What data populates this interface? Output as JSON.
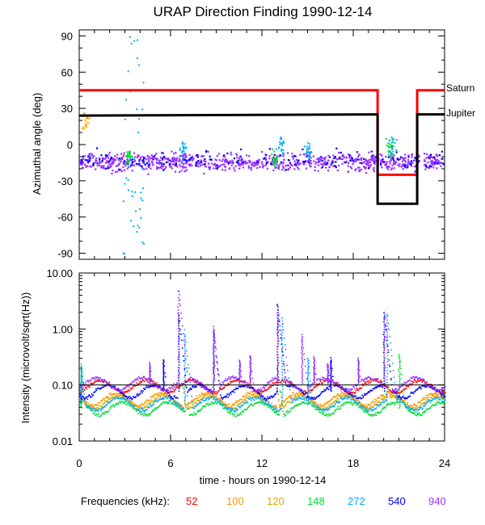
{
  "chart_data": [
    {
      "type": "scatter",
      "title": "URAP Direction Finding  1990-12-14",
      "ylabel": "Azimuthal angle (deg)",
      "xlim": [
        0,
        24
      ],
      "ylim": [
        -95,
        95
      ],
      "yticks": [
        90,
        60,
        30,
        0,
        -30,
        -60,
        -90
      ],
      "yticklabels": [
        "90",
        "60",
        "30",
        "0",
        "-30",
        "-60",
        "-90"
      ],
      "planets": [
        {
          "name": "Saturn",
          "color": "#ff0000",
          "points": [
            [
              0,
              45
            ],
            [
              19.6,
              45
            ],
            [
              19.6,
              -25
            ],
            [
              22.2,
              -25
            ],
            [
              22.2,
              45
            ],
            [
              24,
              45
            ]
          ]
        },
        {
          "name": "Jupiter",
          "color": "#000000",
          "points": [
            [
              0,
              24
            ],
            [
              19.6,
              25
            ],
            [
              19.6,
              -49
            ],
            [
              22.2,
              -49
            ],
            [
              22.2,
              25
            ],
            [
              24,
              25
            ]
          ]
        }
      ],
      "scatter_series": [
        {
          "frequency": "940",
          "color": "#9933ff",
          "description": "main cloud",
          "x_range": [
            0,
            24
          ],
          "center": -14,
          "spread": 9,
          "count": 900
        },
        {
          "frequency": "540",
          "color": "#0000ff",
          "description": "main cloud",
          "x_range": [
            0,
            24
          ],
          "center": -12,
          "spread": 9,
          "count": 180
        },
        {
          "frequency": "272",
          "color": "#00aaff",
          "description": "clusters",
          "clusters": [
            [
              6.8,
              -2
            ],
            [
              13.2,
              0
            ],
            [
              15.0,
              -5
            ],
            [
              20.5,
              0
            ]
          ]
        },
        {
          "frequency": "148",
          "color": "#00dd33",
          "description": "clusters",
          "clusters": [
            [
              3.2,
              -10
            ],
            [
              12.8,
              -12
            ],
            [
              20.4,
              -2
            ]
          ]
        },
        {
          "frequency": "120",
          "color": "#ffaa00",
          "description": "start burst",
          "clusters": [
            [
              0.4,
              20
            ]
          ]
        },
        {
          "frequency": "272",
          "color": "#00aaff",
          "description": "vertical streak",
          "x_range": [
            2.8,
            4.2
          ],
          "y_range": [
            -90,
            90
          ]
        }
      ]
    },
    {
      "type": "line",
      "ylabel": "Intensity (microvolt/sqrt(Hz))",
      "xlabel": "time - hours on 1990-12-14",
      "xlim": [
        0,
        24
      ],
      "ylim": [
        0.01,
        10
      ],
      "yscale": "log",
      "yticks": [
        10,
        1,
        0.1,
        0.01
      ],
      "yticklabels": [
        "10.00",
        "1.00",
        "0.10",
        "0.01"
      ],
      "xticks": [
        0,
        6,
        12,
        18,
        24
      ],
      "xticklabels": [
        "0",
        "6",
        "12",
        "18",
        "24"
      ],
      "reference_line": 0.1,
      "series": [
        {
          "name": "52",
          "color": "#ff0000",
          "baseline": 0.1,
          "bursts": []
        },
        {
          "name": "100",
          "color": "#ff9900",
          "baseline": 0.058,
          "bursts": [
            [
              6.8,
              0.09
            ],
            [
              13.0,
              0.08
            ],
            [
              20.3,
              0.08
            ]
          ]
        },
        {
          "name": "120",
          "color": "#ddaa00",
          "baseline": 0.052,
          "bursts": [
            [
              6.8,
              0.09
            ],
            [
              13.0,
              0.08
            ],
            [
              20.3,
              0.08
            ]
          ]
        },
        {
          "name": "148",
          "color": "#00dd33",
          "baseline": 0.04,
          "bursts": [
            [
              0.1,
              0.24
            ],
            [
              7.0,
              0.1
            ],
            [
              13.2,
              0.08
            ],
            [
              21.0,
              0.35
            ]
          ]
        },
        {
          "name": "272",
          "color": "#00aaff",
          "baseline": 0.048,
          "bursts": [
            [
              0.1,
              0.2
            ],
            [
              6.9,
              0.9
            ],
            [
              13.3,
              1.6
            ],
            [
              15.0,
              0.3
            ],
            [
              20.2,
              1.9
            ]
          ]
        },
        {
          "name": "540",
          "color": "#0000ff",
          "baseline": 0.08,
          "bursts": [
            [
              6.5,
              2.0
            ],
            [
              13.0,
              2.5
            ],
            [
              20.0,
              1.9
            ],
            [
              5.5,
              0.3
            ],
            [
              8.8,
              0.9
            ],
            [
              16.5,
              0.3
            ]
          ]
        },
        {
          "name": "940",
          "color": "#9933ff",
          "baseline": 0.11,
          "bursts": [
            [
              6.5,
              4.8
            ],
            [
              13.0,
              2.8
            ],
            [
              20.0,
              2.0
            ],
            [
              4.6,
              0.25
            ],
            [
              8.8,
              1.1
            ],
            [
              10.5,
              0.28
            ],
            [
              11.2,
              0.35
            ],
            [
              14.6,
              0.8
            ],
            [
              15.4,
              0.32
            ],
            [
              16.3,
              0.25
            ],
            [
              18.3,
              0.3
            ]
          ]
        }
      ]
    }
  ],
  "legend": {
    "label": "Frequencies (kHz):",
    "items": [
      {
        "text": "52",
        "color": "#ff0000"
      },
      {
        "text": "100",
        "color": "#ff9900"
      },
      {
        "text": "120",
        "color": "#ddaa00"
      },
      {
        "text": "148",
        "color": "#00dd33"
      },
      {
        "text": "272",
        "color": "#00aaff"
      },
      {
        "text": "540",
        "color": "#0000ff"
      },
      {
        "text": "940",
        "color": "#9933ff"
      }
    ]
  }
}
